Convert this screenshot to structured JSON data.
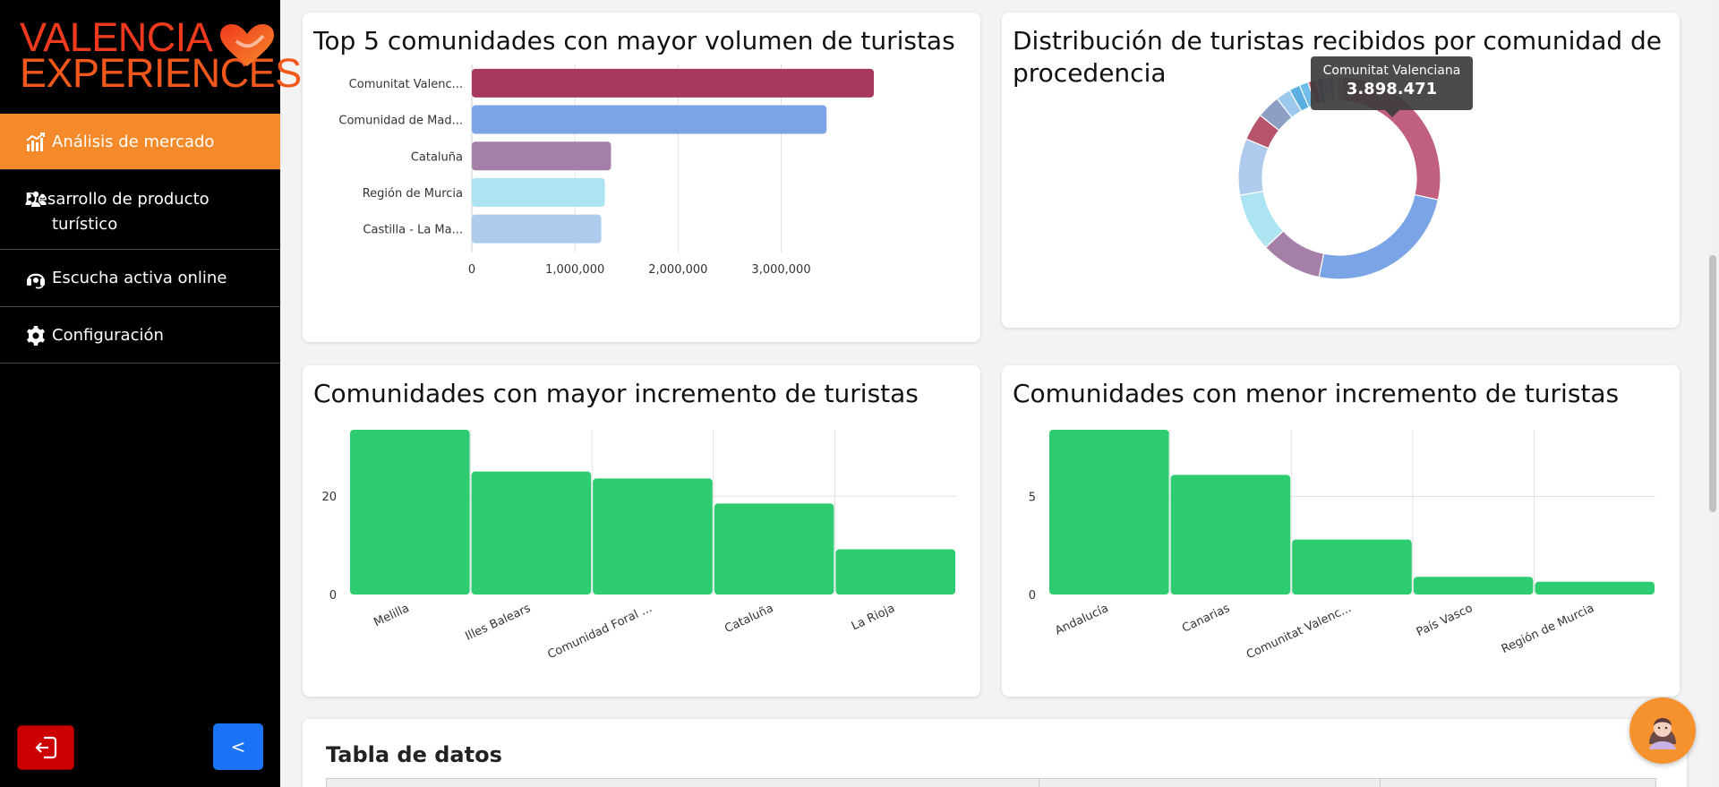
{
  "brand": {
    "line1": "VALENCIA",
    "line2": "EXPERIENCES"
  },
  "nav": [
    {
      "label": "Análisis de mercado",
      "icon": "chart-growth-icon",
      "active": true
    },
    {
      "label": "Desarrollo de producto turístico",
      "icon": "people-group-icon",
      "active": false
    },
    {
      "label": "Escucha activa online",
      "icon": "headset-icon",
      "active": false
    },
    {
      "label": "Configuración",
      "icon": "gear-icon",
      "active": false
    }
  ],
  "buttons": {
    "collapse_label": "<"
  },
  "cards": {
    "top5_title": "Top 5 comunidades con mayor volumen de turistas",
    "distribution_title": "Distribución de turistas recibidos por comunidad de procedencia",
    "increase_title": "Comunidades con mayor incremento de turistas",
    "decrease_title": "Comunidades con menor incremento de turistas",
    "table_title": "Tabla de datos"
  },
  "tooltip": {
    "label": "Comunitat Valenciana",
    "value": "3.898.471"
  },
  "colors": {
    "accent": "#f58a2a",
    "green": "#2ecc71",
    "logout": "#cc0000",
    "collapse": "#1a73f5"
  },
  "chart_data": [
    {
      "type": "bar",
      "orientation": "horizontal",
      "categories": [
        "Comunitat Valenc...",
        "Comunidad de Mad...",
        "Cataluña",
        "Región de Murcia",
        "Castilla - La Ma..."
      ],
      "values": [
        3898471,
        3440000,
        1350000,
        1290000,
        1255000
      ],
      "colors": [
        "#a8385c",
        "#7ba4e6",
        "#a47fa8",
        "#ade4f2",
        "#aecbee"
      ],
      "xticks": [
        "0",
        "1,000,000",
        "2,000,000",
        "3,000,000"
      ],
      "xlim": [
        0,
        3898471
      ],
      "grid": true
    },
    {
      "type": "pie",
      "donut": true,
      "slices": [
        {
          "value": 3898471,
          "color": "#c05f7f"
        },
        {
          "value": 3440000,
          "color": "#7ba4e6"
        },
        {
          "value": 1350000,
          "color": "#a47fa8"
        },
        {
          "value": 1290000,
          "color": "#ade4f2"
        },
        {
          "value": 1255000,
          "color": "#aecbee"
        },
        {
          "value": 600000,
          "color": "#b5546a"
        },
        {
          "value": 520000,
          "color": "#8e9fc4"
        },
        {
          "value": 330000,
          "color": "#9cc8ee"
        },
        {
          "value": 240000,
          "color": "#5aaee0"
        },
        {
          "value": 200000,
          "color": "#6fbde8"
        },
        {
          "value": 180000,
          "color": "#c44d61"
        },
        {
          "value": 150000,
          "color": "#7c92d6"
        },
        {
          "value": 130000,
          "color": "#9fb8e8"
        },
        {
          "value": 110000,
          "color": "#b07ab0"
        },
        {
          "value": 90000,
          "color": "#c6e0f2"
        },
        {
          "value": 80000,
          "color": "#d07a9a"
        }
      ]
    },
    {
      "type": "bar",
      "categories": [
        "Melilla",
        "Illes Balears",
        "Comunidad Foral ...",
        "Cataluña",
        "La Rioja"
      ],
      "values": [
        33.5,
        25,
        23.6,
        18.5,
        9.2
      ],
      "yticks": [
        0,
        20
      ],
      "ylim": [
        0,
        33.5
      ],
      "color": "#2ecc71",
      "grid": true
    },
    {
      "type": "bar",
      "categories": [
        "Andalucía",
        "Canarias",
        "Comunitat Valenc...",
        "País Vasco",
        "Región de Murcia"
      ],
      "values": [
        8.4,
        6.1,
        2.8,
        0.9,
        0.65
      ],
      "yticks": [
        0,
        5
      ],
      "ylim": [
        0,
        8.4
      ],
      "color": "#2ecc71",
      "grid": true
    }
  ]
}
